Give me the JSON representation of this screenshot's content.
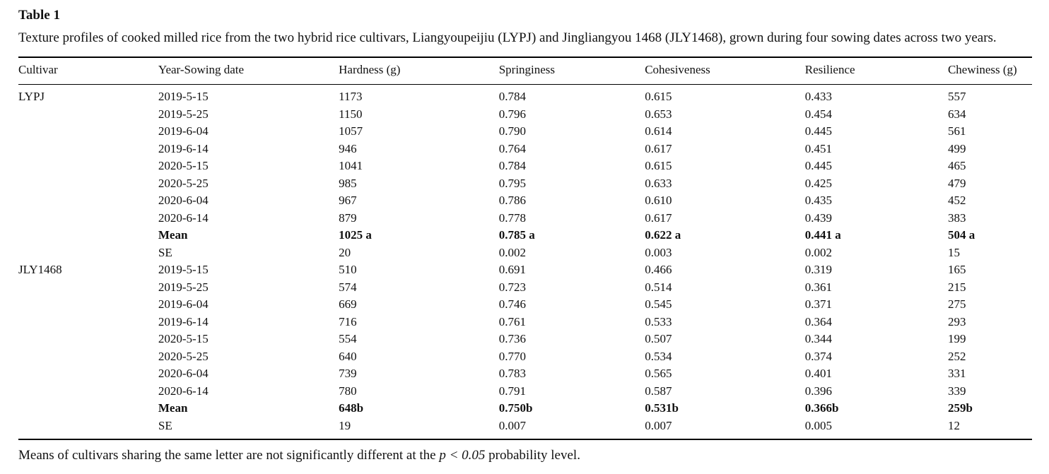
{
  "title": "Table 1",
  "caption": "Texture profiles of cooked milled rice from the two hybrid rice cultivars, Liangyoupeijiu (LYPJ) and Jingliangyou 1468 (JLY1468), grown during four sowing dates across two years.",
  "table": {
    "columns": [
      "Cultivar",
      "Year-Sowing date",
      "Hardness (g)",
      "Springiness",
      "Cohesiveness",
      "Resilience",
      "Chewiness (g)"
    ],
    "rows": [
      {
        "bold": false,
        "cells": [
          "LYPJ",
          "2019-5-15",
          "1173",
          "0.784",
          "0.615",
          "0.433",
          "557"
        ]
      },
      {
        "bold": false,
        "cells": [
          "",
          "2019-5-25",
          "1150",
          "0.796",
          "0.653",
          "0.454",
          "634"
        ]
      },
      {
        "bold": false,
        "cells": [
          "",
          "2019-6-04",
          "1057",
          "0.790",
          "0.614",
          "0.445",
          "561"
        ]
      },
      {
        "bold": false,
        "cells": [
          "",
          "2019-6-14",
          "946",
          "0.764",
          "0.617",
          "0.451",
          "499"
        ]
      },
      {
        "bold": false,
        "cells": [
          "",
          "2020-5-15",
          "1041",
          "0.784",
          "0.615",
          "0.445",
          "465"
        ]
      },
      {
        "bold": false,
        "cells": [
          "",
          "2020-5-25",
          "985",
          "0.795",
          "0.633",
          "0.425",
          "479"
        ]
      },
      {
        "bold": false,
        "cells": [
          "",
          "2020-6-04",
          "967",
          "0.786",
          "0.610",
          "0.435",
          "452"
        ]
      },
      {
        "bold": false,
        "cells": [
          "",
          "2020-6-14",
          "879",
          "0.778",
          "0.617",
          "0.439",
          "383"
        ]
      },
      {
        "bold": true,
        "cells": [
          "",
          "Mean",
          "1025 a",
          "0.785 a",
          "0.622 a",
          "0.441 a",
          "504 a"
        ]
      },
      {
        "bold": false,
        "cells": [
          "",
          "SE",
          "20",
          "0.002",
          "0.003",
          "0.002",
          "15"
        ]
      },
      {
        "bold": false,
        "cells": [
          "JLY1468",
          "2019-5-15",
          "510",
          "0.691",
          "0.466",
          "0.319",
          "165"
        ]
      },
      {
        "bold": false,
        "cells": [
          "",
          "2019-5-25",
          "574",
          "0.723",
          "0.514",
          "0.361",
          "215"
        ]
      },
      {
        "bold": false,
        "cells": [
          "",
          "2019-6-04",
          "669",
          "0.746",
          "0.545",
          "0.371",
          "275"
        ]
      },
      {
        "bold": false,
        "cells": [
          "",
          "2019-6-14",
          "716",
          "0.761",
          "0.533",
          "0.364",
          "293"
        ]
      },
      {
        "bold": false,
        "cells": [
          "",
          "2020-5-15",
          "554",
          "0.736",
          "0.507",
          "0.344",
          "199"
        ]
      },
      {
        "bold": false,
        "cells": [
          "",
          "2020-5-25",
          "640",
          "0.770",
          "0.534",
          "0.374",
          "252"
        ]
      },
      {
        "bold": false,
        "cells": [
          "",
          "2020-6-04",
          "739",
          "0.783",
          "0.565",
          "0.401",
          "331"
        ]
      },
      {
        "bold": false,
        "cells": [
          "",
          "2020-6-14",
          "780",
          "0.791",
          "0.587",
          "0.396",
          "339"
        ]
      },
      {
        "bold": true,
        "cells": [
          "",
          "Mean",
          "648b",
          "0.750b",
          "0.531b",
          "0.366b",
          "259b"
        ]
      },
      {
        "bold": false,
        "cells": [
          "",
          "SE",
          "19",
          "0.007",
          "0.007",
          "0.005",
          "12"
        ]
      }
    ],
    "column_widths_pct": [
      13.8,
      17.8,
      15.8,
      14.4,
      15.8,
      14.1,
      8.3
    ]
  },
  "footnote": {
    "prefix": "Means of cultivars sharing the same letter are not significantly different at the ",
    "italic": "p < 0.05",
    "suffix": " probability level."
  }
}
